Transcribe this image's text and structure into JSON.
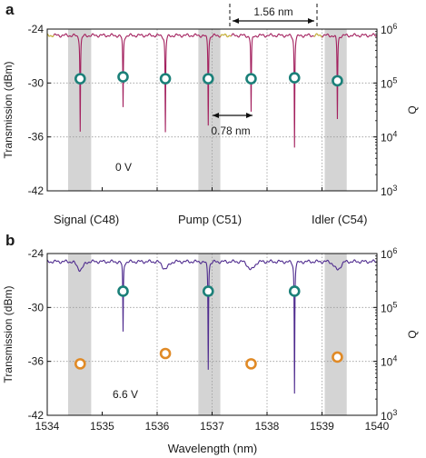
{
  "chart_data": [
    {
      "panel_label": "a",
      "type": "line",
      "x_range": [
        1534,
        1540
      ],
      "y_left": {
        "label": "Transmission (dBm)",
        "ticks": [
          "-24",
          "-30",
          "-36",
          "-42"
        ],
        "range": [
          -42,
          -24
        ]
      },
      "y_right": {
        "label": "Q",
        "scale": "log",
        "tick_exponents": [
          "6",
          "5",
          "4",
          "3"
        ],
        "range": [
          1000,
          1000000
        ]
      },
      "grid": {
        "dotted_x": [
          1536,
          1537,
          1538,
          1539
        ],
        "dotted_y": [
          -30,
          -36
        ]
      },
      "shaded_bands": [
        [
          1534.38,
          1534.8
        ],
        [
          1536.75,
          1537.15
        ],
        [
          1539.05,
          1539.45
        ]
      ],
      "transmission_baseline_dBm": -24.7,
      "resonance_dips": [
        {
          "x": 1534.6,
          "min_dBm": -35.3,
          "width_nm": 0.012
        },
        {
          "x": 1535.38,
          "min_dBm": -32.8,
          "width_nm": 0.012
        },
        {
          "x": 1536.15,
          "min_dBm": -35.5,
          "width_nm": 0.012
        },
        {
          "x": 1536.93,
          "min_dBm": -34.6,
          "width_nm": 0.012
        },
        {
          "x": 1537.71,
          "min_dBm": -33.3,
          "width_nm": 0.012
        },
        {
          "x": 1538.5,
          "min_dBm": -37.1,
          "width_nm": 0.012
        },
        {
          "x": 1539.28,
          "min_dBm": -34.0,
          "width_nm": 0.012
        }
      ],
      "trace_colors": {
        "main": "#a3205e",
        "segment": "#c9c23a"
      },
      "q_series": {
        "marker": "teal-open-circle",
        "color": "#1b8079",
        "points": [
          {
            "x": 1534.6,
            "q": 120000
          },
          {
            "x": 1535.38,
            "q": 130000
          },
          {
            "x": 1536.15,
            "q": 120000
          },
          {
            "x": 1536.93,
            "q": 120000
          },
          {
            "x": 1537.71,
            "q": 120000
          },
          {
            "x": 1538.5,
            "q": 125000
          },
          {
            "x": 1539.28,
            "q": 110000
          }
        ]
      },
      "annotations": {
        "fsr_double": {
          "label": "1.56 nm",
          "x_from": 1537.35,
          "x_to": 1538.92
        },
        "fsr_single": {
          "label": "0.78 nm",
          "x_from": 1536.95,
          "x_to": 1537.72
        },
        "voltage": "0 V"
      }
    },
    {
      "panel_label": "b",
      "type": "line",
      "x_range": [
        1534,
        1540
      ],
      "x_ticks": [
        "1534",
        "1535",
        "1536",
        "1537",
        "1538",
        "1539",
        "1540"
      ],
      "x_label": "Wavelength (nm)",
      "y_left": {
        "label": "Transmission (dBm)",
        "ticks": [
          "-24",
          "-30",
          "-36",
          "-42"
        ],
        "range": [
          -42,
          -24
        ]
      },
      "y_right": {
        "label": "Q",
        "scale": "log",
        "tick_exponents": [
          "6",
          "5",
          "4",
          "3"
        ],
        "range": [
          1000,
          1000000
        ]
      },
      "grid": {
        "dotted_x": [
          1536,
          1537,
          1538,
          1539
        ],
        "dotted_y": [
          -30,
          -36
        ]
      },
      "shaded_bands": [
        [
          1534.38,
          1534.8
        ],
        [
          1536.75,
          1537.15
        ],
        [
          1539.05,
          1539.45
        ]
      ],
      "transmission_baseline_dBm": -24.9,
      "broad_dips": [
        {
          "x": 1534.6,
          "depth_dB": 0.9,
          "width_nm": 0.08
        },
        {
          "x": 1536.15,
          "depth_dB": 0.8,
          "width_nm": 0.08
        },
        {
          "x": 1537.71,
          "depth_dB": 0.9,
          "width_nm": 0.08
        },
        {
          "x": 1539.28,
          "depth_dB": 0.9,
          "width_nm": 0.08
        }
      ],
      "resonance_dips": [
        {
          "x": 1535.38,
          "min_dBm": -32.8,
          "width_nm": 0.012
        },
        {
          "x": 1536.93,
          "min_dBm": -36.8,
          "width_nm": 0.012
        },
        {
          "x": 1538.5,
          "min_dBm": -39.5,
          "width_nm": 0.012
        }
      ],
      "trace_colors": {
        "main": "#4e2a8e"
      },
      "q_series": [
        {
          "marker": "teal-open-circle",
          "color": "#1b8079",
          "points": [
            {
              "x": 1535.38,
              "q": 200000
            },
            {
              "x": 1536.93,
              "q": 200000
            },
            {
              "x": 1538.5,
              "q": 200000
            }
          ]
        },
        {
          "marker": "orange-open-circle",
          "color": "#e08a26",
          "points": [
            {
              "x": 1534.6,
              "q": 9000
            },
            {
              "x": 1536.15,
              "q": 14000
            },
            {
              "x": 1537.71,
              "q": 9000
            },
            {
              "x": 1539.28,
              "q": 12000
            }
          ]
        }
      ],
      "annotations": {
        "voltage": "6.6 V"
      }
    }
  ],
  "band_labels": [
    "Signal (C48)",
    "Pump (C51)",
    "Idler (C54)"
  ]
}
